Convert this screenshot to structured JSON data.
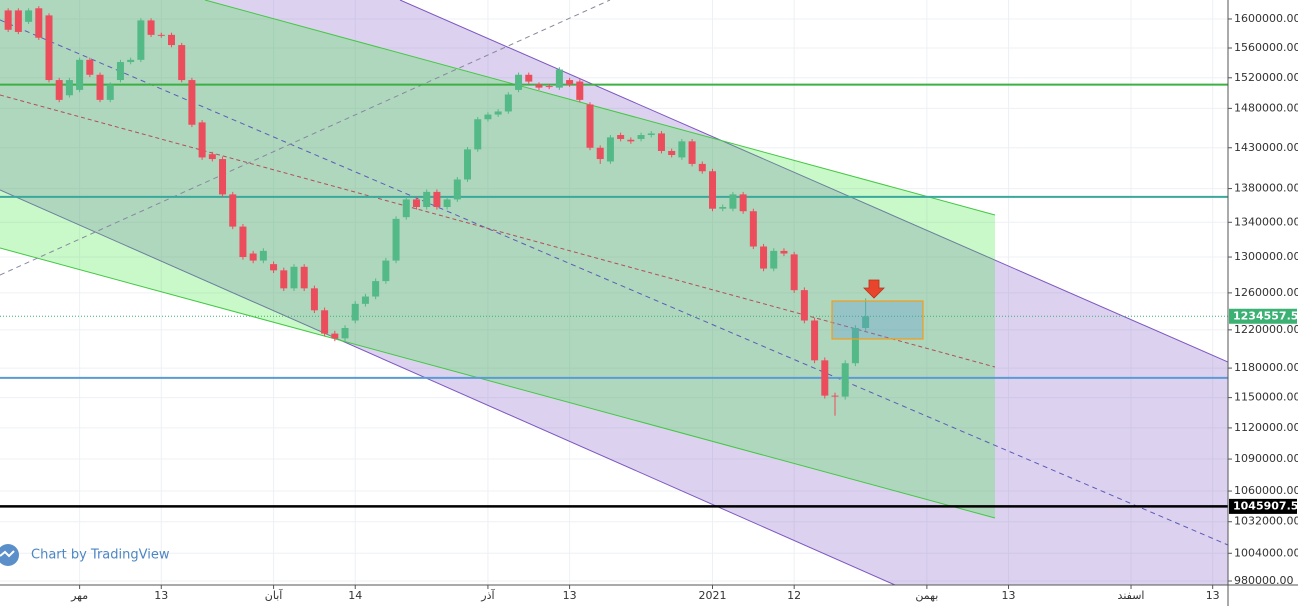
{
  "chart_data": {
    "type": "candlestick",
    "watermark": "Chart by TradingView",
    "log_scale": true,
    "grid": true,
    "up_color": "#53b987",
    "down_color": "#eb4d5c",
    "xlim": [
      -0.8,
      119.5
    ],
    "xticks": [
      {
        "value": 7,
        "label": "مهر"
      },
      {
        "value": 15,
        "label": "13"
      },
      {
        "value": 26,
        "label": "آبان"
      },
      {
        "value": 34,
        "label": "14"
      },
      {
        "value": 47,
        "label": "آذر"
      },
      {
        "value": 55,
        "label": "13"
      },
      {
        "value": 69,
        "label": "2021"
      },
      {
        "value": 77,
        "label": "12"
      },
      {
        "value": 90,
        "label": "بهمن"
      },
      {
        "value": 98,
        "label": "13"
      },
      {
        "value": 110,
        "label": "اسفند"
      },
      {
        "value": 118,
        "label": "13"
      }
    ],
    "ylim": [
      976600,
      1626700
    ],
    "yticks": [
      {
        "value": 1600000,
        "label": "1600000.00"
      },
      {
        "value": 1560000,
        "label": "1560000.00"
      },
      {
        "value": 1520000,
        "label": "1520000.00"
      },
      {
        "value": 1480000,
        "label": "1480000.00"
      },
      {
        "value": 1430000,
        "label": "1430000.00"
      },
      {
        "value": 1380000,
        "label": "1380000.00"
      },
      {
        "value": 1340000,
        "label": "1340000.00"
      },
      {
        "value": 1300000,
        "label": "1300000.00"
      },
      {
        "value": 1260000,
        "label": "1260000.00"
      },
      {
        "value": 1220000,
        "label": "1220000.00"
      },
      {
        "value": 1180000,
        "label": "1180000.00"
      },
      {
        "value": 1150000,
        "label": "1150000.00"
      },
      {
        "value": 1120000,
        "label": "1120000.00"
      },
      {
        "value": 1090000,
        "label": "1090000.00"
      },
      {
        "value": 1060000,
        "label": "1060000.00"
      },
      {
        "value": 1032000,
        "label": "1032000.00"
      },
      {
        "value": 1004000,
        "label": "1004000.00"
      },
      {
        "value": 980000,
        "label": "980000.00"
      }
    ],
    "levels": [
      {
        "value": 1511000,
        "color": "#3cb043"
      },
      {
        "value": 1370000,
        "color": "#3aa99b"
      },
      {
        "value": 1170000,
        "color": "#5b9bd5"
      }
    ],
    "price_lines": [
      {
        "value": 1234557.5,
        "label": "1234557.50",
        "color": "#3bb273",
        "style": "dotted"
      },
      {
        "value": 1045907.57,
        "label": "1045907.57",
        "color": "#000000",
        "style": "solid"
      }
    ],
    "open": [
      1612000,
      1612000,
      1596000,
      1615000,
      1605000,
      1517000,
      1497000,
      1504000,
      1544000,
      1524000,
      1491000,
      1517000,
      1541000,
      1544000,
      1598000,
      1578000,
      1578000,
      1564000,
      1517000,
      1462000,
      1422000,
      1416000,
      1373000,
      1335000,
      1304000,
      1296000,
      1292000,
      1285000,
      1265000,
      1289000,
      1265000,
      1241000,
      1216000,
      1211000,
      1230000,
      1248000,
      1256000,
      1273000,
      1296000,
      1346000,
      1367000,
      1358000,
      1376000,
      1358000,
      1367000,
      1391000,
      1428000,
      1466000,
      1472000,
      1476000,
      1504000,
      1524000,
      1511000,
      1509000,
      1507000,
      1517000,
      1515000,
      1485000,
      1430000,
      1413000,
      1446000,
      1440000,
      1441000,
      1446000,
      1448000,
      1426000,
      1418000,
      1438000,
      1410000,
      1401000,
      1356000,
      1356000,
      1373000,
      1353000,
      1312000,
      1287000,
      1307000,
      1303000,
      1263000,
      1230000,
      1188000,
      1152000,
      1151000,
      1185000,
      1222000
    ],
    "high": [
      1615000,
      1615000,
      1615000,
      1618000,
      1608000,
      1520000,
      1520000,
      1547000,
      1547000,
      1527000,
      1514000,
      1544000,
      1547000,
      1601000,
      1601000,
      1581000,
      1581000,
      1567000,
      1520000,
      1465000,
      1425000,
      1419000,
      1376000,
      1338000,
      1307000,
      1310000,
      1295000,
      1288000,
      1292000,
      1292000,
      1268000,
      1244000,
      1219000,
      1225000,
      1251000,
      1259000,
      1276000,
      1299000,
      1347000,
      1370000,
      1370000,
      1379000,
      1379000,
      1370000,
      1394000,
      1431000,
      1469000,
      1475000,
      1479000,
      1501000,
      1527000,
      1527000,
      1514000,
      1512000,
      1534000,
      1520000,
      1518000,
      1488000,
      1433000,
      1446000,
      1449000,
      1443000,
      1449000,
      1451000,
      1451000,
      1429000,
      1441000,
      1441000,
      1413000,
      1404000,
      1361000,
      1376000,
      1376000,
      1356000,
      1315000,
      1310000,
      1310000,
      1306000,
      1266000,
      1233000,
      1191000,
      1155000,
      1188000,
      1225000,
      1254000
    ],
    "low": [
      1582000,
      1579000,
      1593000,
      1571000,
      1514000,
      1488000,
      1494000,
      1501000,
      1521000,
      1488000,
      1488000,
      1514000,
      1538000,
      1541000,
      1575000,
      1574000,
      1561000,
      1514000,
      1456000,
      1415000,
      1413000,
      1370000,
      1332000,
      1297000,
      1293000,
      1293000,
      1282000,
      1262000,
      1262000,
      1262000,
      1238000,
      1213000,
      1208000,
      1208000,
      1227000,
      1245000,
      1253000,
      1270000,
      1293000,
      1343000,
      1355000,
      1355000,
      1355000,
      1355000,
      1364000,
      1388000,
      1425000,
      1463000,
      1469000,
      1473000,
      1501000,
      1512000,
      1504000,
      1505000,
      1504000,
      1508000,
      1488000,
      1427000,
      1410000,
      1410000,
      1438000,
      1435000,
      1438000,
      1443000,
      1423000,
      1418000,
      1415000,
      1407000,
      1398000,
      1353000,
      1353000,
      1353000,
      1350000,
      1309000,
      1284000,
      1284000,
      1301000,
      1260000,
      1227000,
      1185000,
      1149000,
      1132000,
      1148000,
      1182000,
      1219000
    ],
    "close": [
      1585000,
      1582000,
      1612000,
      1574000,
      1517000,
      1491000,
      1517000,
      1544000,
      1524000,
      1491000,
      1511000,
      1541000,
      1544000,
      1598000,
      1578000,
      1577000,
      1564000,
      1517000,
      1459000,
      1418000,
      1416000,
      1373000,
      1335000,
      1300000,
      1296000,
      1307000,
      1285000,
      1265000,
      1289000,
      1265000,
      1241000,
      1216000,
      1211000,
      1222000,
      1248000,
      1256000,
      1273000,
      1296000,
      1344000,
      1367000,
      1358000,
      1376000,
      1358000,
      1367000,
      1391000,
      1428000,
      1466000,
      1472000,
      1476000,
      1498000,
      1524000,
      1515000,
      1507000,
      1508000,
      1531000,
      1511000,
      1491000,
      1430000,
      1416000,
      1443000,
      1441000,
      1438000,
      1446000,
      1448000,
      1426000,
      1421000,
      1438000,
      1410000,
      1401000,
      1356000,
      1358000,
      1373000,
      1353000,
      1312000,
      1287000,
      1307000,
      1304000,
      1263000,
      1230000,
      1188000,
      1152000,
      1151000,
      1185000,
      1222000,
      1234557.5
    ]
  }
}
